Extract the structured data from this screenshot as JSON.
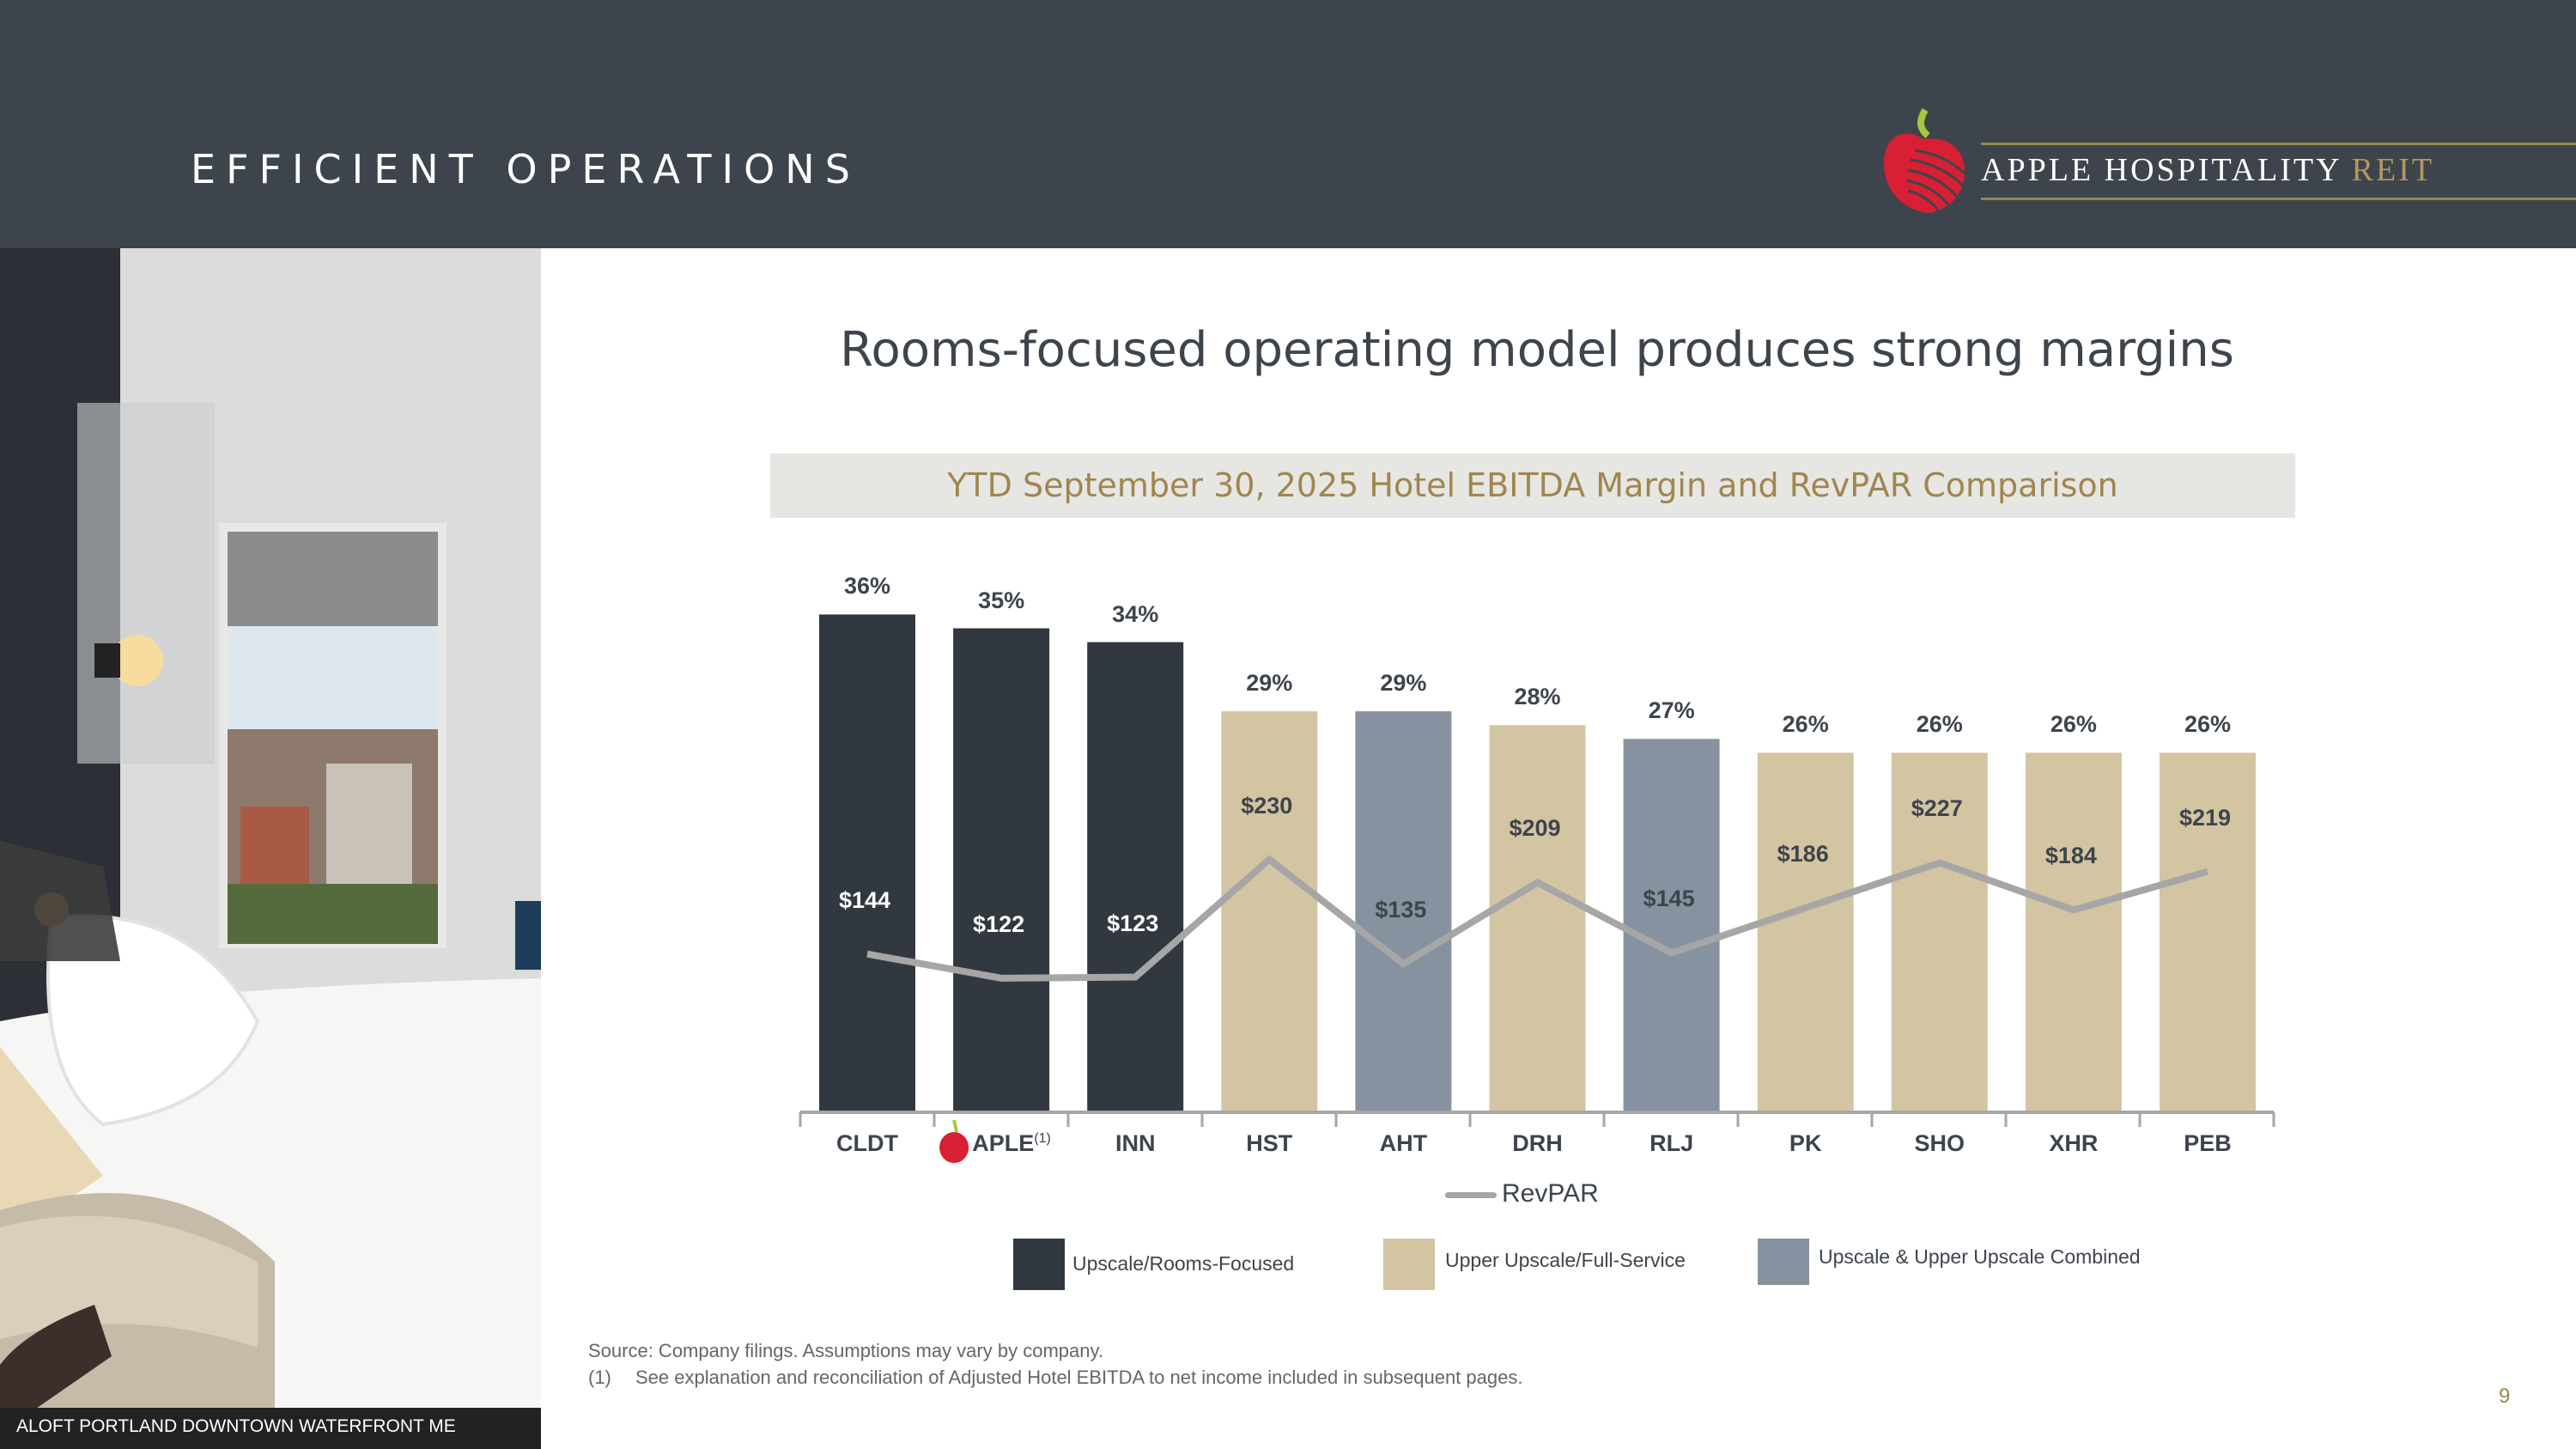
{
  "header": {
    "title": "EFFICIENT OPERATIONS",
    "logo_text": "APPLE HOSPITALITY",
    "logo_accent": "REIT"
  },
  "photo": {
    "caption": "ALOFT PORTLAND DOWNTOWN WATERFRONT ME"
  },
  "main_title": "Rooms-focused operating model produces strong margins",
  "chart_data": {
    "type": "bar",
    "title": "YTD September 30, 2025 Hotel EBITDA Margin and RevPAR Comparison",
    "categories": [
      "CLDT",
      "APLE",
      "INN",
      "HST",
      "AHT",
      "DRH",
      "RLJ",
      "PK",
      "SHO",
      "XHR",
      "PEB"
    ],
    "category_notes": {
      "APLE": "(1)"
    },
    "segments": [
      "rooms",
      "rooms",
      "rooms",
      "upper",
      "combined",
      "upper",
      "combined",
      "upper",
      "upper",
      "upper",
      "upper"
    ],
    "series": [
      {
        "name": "Hotel EBITDA Margin",
        "type": "bar",
        "values": [
          36,
          35,
          34,
          29,
          29,
          28,
          27,
          26,
          26,
          26,
          26
        ],
        "labels": [
          "36%",
          "35%",
          "34%",
          "29%",
          "29%",
          "28%",
          "27%",
          "26%",
          "26%",
          "26%",
          "26%"
        ]
      },
      {
        "name": "RevPAR",
        "type": "line",
        "values": [
          144,
          122,
          123,
          230,
          135,
          209,
          145,
          186,
          227,
          184,
          219
        ],
        "labels": [
          "$144",
          "$122",
          "$123",
          "$230",
          "$135",
          "$209",
          "$145",
          "$186",
          "$227",
          "$184",
          "$219"
        ]
      }
    ],
    "legend": [
      {
        "key": "rooms",
        "label": "Upscale/Rooms-Focused",
        "color": "#323840"
      },
      {
        "key": "upper",
        "label": "Upper Upscale/Full-Service",
        "color": "#d3c5a2"
      },
      {
        "key": "combined",
        "label": "Upscale & Upper Upscale Combined",
        "color": "#86929f"
      }
    ],
    "line_legend": "RevPAR",
    "line_color": "#a6a6a6",
    "legend_position": "bottom"
  },
  "footer": {
    "source": "Source: Company filings. Assumptions may vary by company.",
    "note_marker": "(1)",
    "note": "See explanation and reconciliation of Adjusted Hotel EBITDA to net income included in subsequent pages.",
    "page_number": "9"
  }
}
